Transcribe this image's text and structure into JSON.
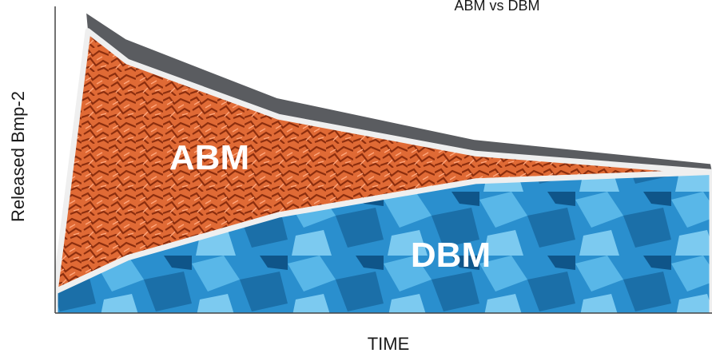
{
  "chart_data": {
    "type": "area",
    "title": "ABM vs DBM",
    "xlabel": "TIME",
    "ylabel": "Released Bmp-2",
    "x_ticks": [],
    "y_ticks": [],
    "grid": false,
    "legend": "none",
    "series": [
      {
        "name": "ABM",
        "color": "#e8632f",
        "x": [
          0.05,
          0.11,
          0.34,
          0.64,
          1.0
        ],
        "y": [
          0.92,
          0.82,
          0.64,
          0.52,
          0.46
        ]
      },
      {
        "name": "DBM",
        "color": "#2d98d4",
        "x": [
          0.0,
          0.05,
          0.11,
          0.34,
          0.64,
          1.0
        ],
        "y": [
          0.07,
          0.12,
          0.18,
          0.32,
          0.43,
          0.46
        ]
      }
    ],
    "top_band_color": "#5a5c60"
  }
}
